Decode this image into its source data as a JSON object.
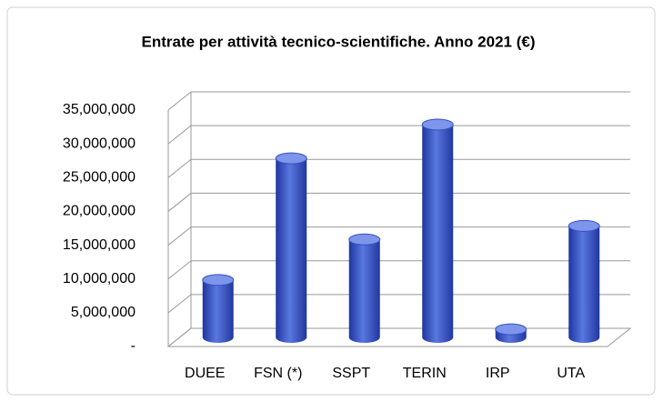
{
  "chart_data": {
    "type": "bar3d",
    "title": "Entrate per attività tecnico-scientifiche. Anno 2021 (€)",
    "categories": [
      "DUEE",
      "FSN (*)",
      "SSPT",
      "TERIN",
      "IRP",
      "UTA"
    ],
    "values": [
      8500000,
      26500000,
      14500000,
      31500000,
      1200000,
      16500000
    ],
    "color": "#3350c4",
    "ylim": [
      0,
      35000000
    ],
    "yticks": [
      {
        "value": 0,
        "label": "-"
      },
      {
        "value": 5000000,
        "label": "5,000,000"
      },
      {
        "value": 10000000,
        "label": "10,000,000"
      },
      {
        "value": 15000000,
        "label": "15,000,000"
      },
      {
        "value": 20000000,
        "label": "20,000,000"
      },
      {
        "value": 25000000,
        "label": "25,000,000"
      },
      {
        "value": 30000000,
        "label": "30,000,000"
      },
      {
        "value": 35000000,
        "label": "35,000,000"
      }
    ],
    "grid": true
  }
}
